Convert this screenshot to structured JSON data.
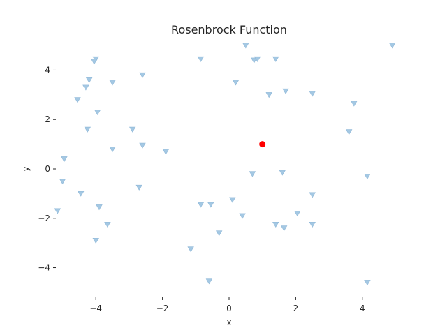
{
  "chart_data": {
    "type": "scatter",
    "title": "Rosenbrock Function",
    "xlabel": "x",
    "ylabel": "y",
    "xlim": [
      -5.2,
      5.2
    ],
    "ylim": [
      -5.2,
      5.2
    ],
    "xticks": [
      -4,
      -2,
      0,
      2,
      4
    ],
    "yticks": [
      -4,
      -2,
      0,
      2,
      4
    ],
    "grid": false,
    "series": [
      {
        "marker": "triangle-down",
        "color": "#a4c8e3",
        "points": [
          [
            -4.0,
            4.45
          ],
          [
            -4.05,
            4.35
          ],
          [
            -4.2,
            3.6
          ],
          [
            -4.3,
            3.3
          ],
          [
            -4.55,
            2.8
          ],
          [
            -3.5,
            3.5
          ],
          [
            -2.6,
            3.8
          ],
          [
            -3.95,
            2.3
          ],
          [
            -4.25,
            1.6
          ],
          [
            -2.9,
            1.6
          ],
          [
            -2.6,
            0.95
          ],
          [
            -3.5,
            0.8
          ],
          [
            -1.9,
            0.7
          ],
          [
            -4.95,
            0.4
          ],
          [
            -5.0,
            -0.5
          ],
          [
            -4.45,
            -1.0
          ],
          [
            -2.7,
            -0.75
          ],
          [
            -3.9,
            -1.55
          ],
          [
            -5.15,
            -1.7
          ],
          [
            -3.65,
            -2.25
          ],
          [
            -4.0,
            -2.9
          ],
          [
            -1.15,
            -3.25
          ],
          [
            -0.85,
            4.45
          ],
          [
            -0.85,
            -1.45
          ],
          [
            -0.55,
            -1.45
          ],
          [
            -0.3,
            -2.6
          ],
          [
            -0.6,
            -4.55
          ],
          [
            0.5,
            5.0
          ],
          [
            0.2,
            3.5
          ],
          [
            0.75,
            4.4
          ],
          [
            0.85,
            4.45
          ],
          [
            1.4,
            4.45
          ],
          [
            1.2,
            3.0
          ],
          [
            1.7,
            3.15
          ],
          [
            2.5,
            3.05
          ],
          [
            3.75,
            2.65
          ],
          [
            3.6,
            1.5
          ],
          [
            0.7,
            -0.2
          ],
          [
            1.6,
            -0.15
          ],
          [
            0.1,
            -1.25
          ],
          [
            0.4,
            -1.9
          ],
          [
            1.4,
            -2.25
          ],
          [
            1.65,
            -2.4
          ],
          [
            2.05,
            -1.8
          ],
          [
            2.5,
            -1.05
          ],
          [
            2.5,
            -2.25
          ],
          [
            4.15,
            -0.3
          ],
          [
            4.15,
            -4.6
          ],
          [
            4.9,
            5.0
          ]
        ]
      },
      {
        "marker": "circle",
        "color": "#ff0000",
        "points": [
          [
            1.0,
            1.0
          ]
        ]
      }
    ]
  }
}
